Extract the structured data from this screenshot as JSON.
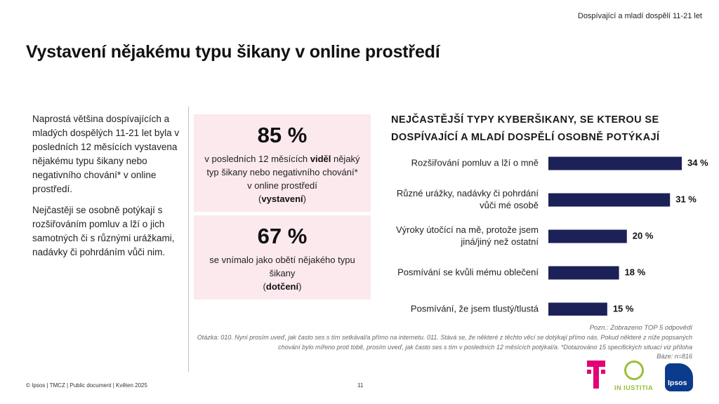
{
  "header": {
    "top_right": "Dospívající a mladí dospělí 11-21 let",
    "title": "Vystavení nějakému typu šikany v online prostředí"
  },
  "intro": {
    "p1": "Naprostá většina dospívajících a mladých dospělých 11-21 let byla v posledních 12 měsících vystavena nějakému typu šikany nebo negativního chování* v online prostředí.",
    "p2": "Nejčastěji se osobně potýkají s rozšiřováním pomluv a lží o jich samotných či s různými urážkami, nadávky či pohrdáním vůči nim."
  },
  "stats": [
    {
      "value": "85 %",
      "desc_a": "v posledních 12 měsících ",
      "desc_bold": "viděl",
      "desc_b": " nějaký typ šikany nebo negativního chování* v online prostředí",
      "tag_open": "(",
      "tag": "vystavení",
      "tag_close": ")"
    },
    {
      "value": "67 %",
      "desc_a": "se vnímalo jako obětí nějakého typu šikany",
      "tag_open": "(",
      "tag": "dotčení",
      "tag_close": ")"
    }
  ],
  "chart_data": {
    "type": "bar",
    "orientation": "horizontal",
    "title": "NEJČASTĚJŠÍ TYPY KYBERŠIKANY, SE KTEROU SE DOSPÍVAJÍCÍ A MLADÍ DOSPĚLÍ OSOBNĚ POTÝKAJÍ",
    "categories": [
      [
        "Rozšiřování pomluv a lží o mně"
      ],
      [
        "Různé urážky, nadávky či pohrdání",
        "vůči mé osobě"
      ],
      [
        "Výroky útočící na mě, protože jsem",
        "jiná/jiný než ostatní"
      ],
      [
        "Posmívání se kvůli mému oblečení"
      ],
      [
        "Posmívání, že jsem tlustý/tlustá"
      ]
    ],
    "values": [
      34,
      31,
      20,
      18,
      15
    ],
    "value_labels": [
      "34 %",
      "31 %",
      "20 %",
      "18 %",
      "15 %"
    ],
    "bar_color": "#1c2157",
    "legend": "none",
    "grid": false
  },
  "notes": {
    "pozn": "Pozn.: Zobrazeno TOP 5 odpovědí",
    "otazka": "Otázka: 010. Nyní prosím uveď, jak často ses s tím setkával/a přímo na internetu. 011. Stává se, že některé z těchto věcí se dotýkají přímo nás. Pokud některé z níže popsaných chování bylo mířeno proti tobě, prosím uveď, jak často ses s tím v posledních 12 měsících potýkal/a. *Dotazováno 15 specifických situací viz příloha",
    "baze": "Báze: n=816"
  },
  "footer": {
    "left": "© Ipsos | TMCZ | Public document | Květen 2025",
    "page": "11"
  },
  "logos": {
    "iustitia": "IN IUSTITIA",
    "ipsos": "Ipsos",
    "telekom_color": "#e20074",
    "iustitia_color": "#9bbf3b",
    "ipsos_color": "#0b3b8c"
  }
}
